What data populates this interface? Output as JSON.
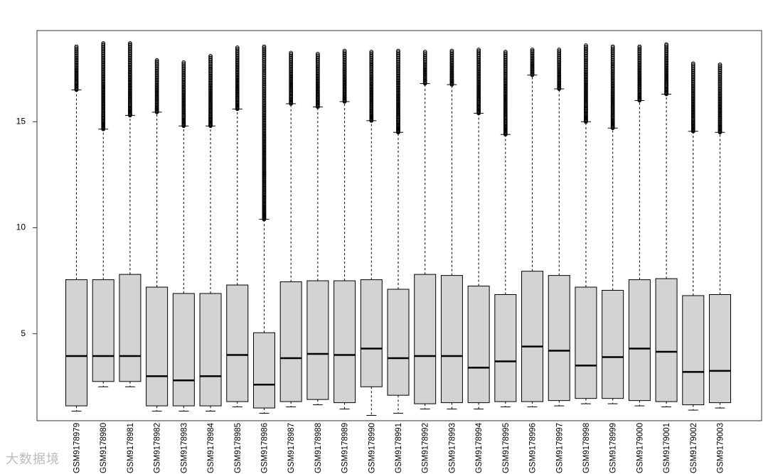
{
  "chart_data": {
    "type": "boxplot",
    "title": "",
    "xlabel": "",
    "ylabel": "",
    "ylim": [
      0.9,
      19.3
    ],
    "y_ticks": [
      5,
      10,
      15
    ],
    "box_fill": "#d3d3d3",
    "stroke_color": "#000000",
    "grid": false,
    "categories": [
      "GSM9178979",
      "GSM9178980",
      "GSM9178981",
      "GSM9178982",
      "GSM9178983",
      "GSM9178984",
      "GSM9178985",
      "GSM9178986",
      "GSM9178987",
      "GSM9178988",
      "GSM9178989",
      "GSM9178990",
      "GSM9178991",
      "GSM9178992",
      "GSM9178993",
      "GSM9178994",
      "GSM9178995",
      "GSM9178996",
      "GSM9178997",
      "GSM9178998",
      "GSM9178999",
      "GSM9179000",
      "GSM9179001",
      "GSM9179002",
      "GSM9179003"
    ],
    "boxes": [
      {
        "whisker_low": 1.35,
        "q1": 1.6,
        "median": 3.95,
        "q3": 7.55,
        "whisker_high": 16.5,
        "outlier_max": 18.55
      },
      {
        "whisker_low": 2.5,
        "q1": 2.75,
        "median": 3.95,
        "q3": 7.55,
        "whisker_high": 14.65,
        "outlier_max": 18.7
      },
      {
        "whisker_low": 2.5,
        "q1": 2.75,
        "median": 3.95,
        "q3": 7.8,
        "whisker_high": 15.3,
        "outlier_max": 18.7
      },
      {
        "whisker_low": 1.35,
        "q1": 1.6,
        "median": 3.0,
        "q3": 7.2,
        "whisker_high": 15.45,
        "outlier_max": 17.9
      },
      {
        "whisker_low": 1.35,
        "q1": 1.6,
        "median": 2.8,
        "q3": 6.9,
        "whisker_high": 14.8,
        "outlier_max": 17.8
      },
      {
        "whisker_low": 1.35,
        "q1": 1.6,
        "median": 3.0,
        "q3": 6.9,
        "whisker_high": 14.8,
        "outlier_max": 18.1
      },
      {
        "whisker_low": 1.55,
        "q1": 1.8,
        "median": 4.0,
        "q3": 7.3,
        "whisker_high": 15.6,
        "outlier_max": 18.5
      },
      {
        "whisker_low": 1.25,
        "q1": 1.5,
        "median": 2.6,
        "q3": 5.05,
        "whisker_high": 10.4,
        "outlier_max": 18.55
      },
      {
        "whisker_low": 1.55,
        "q1": 1.8,
        "median": 3.85,
        "q3": 7.45,
        "whisker_high": 15.85,
        "outlier_max": 18.25
      },
      {
        "whisker_low": 1.65,
        "q1": 1.9,
        "median": 4.05,
        "q3": 7.5,
        "whisker_high": 15.7,
        "outlier_max": 18.2
      },
      {
        "whisker_low": 1.45,
        "q1": 1.75,
        "median": 4.0,
        "q3": 7.5,
        "whisker_high": 15.95,
        "outlier_max": 18.35
      },
      {
        "whisker_low": 1.15,
        "q1": 2.5,
        "median": 4.3,
        "q3": 7.55,
        "whisker_high": 15.05,
        "outlier_max": 18.3
      },
      {
        "whisker_low": 1.25,
        "q1": 2.1,
        "median": 3.85,
        "q3": 7.1,
        "whisker_high": 14.5,
        "outlier_max": 18.35
      },
      {
        "whisker_low": 1.45,
        "q1": 1.7,
        "median": 3.95,
        "q3": 7.8,
        "whisker_high": 16.8,
        "outlier_max": 18.3
      },
      {
        "whisker_low": 1.45,
        "q1": 1.75,
        "median": 3.95,
        "q3": 7.75,
        "whisker_high": 16.75,
        "outlier_max": 18.35
      },
      {
        "whisker_low": 1.45,
        "q1": 1.75,
        "median": 3.4,
        "q3": 7.25,
        "whisker_high": 15.4,
        "outlier_max": 18.4
      },
      {
        "whisker_low": 1.55,
        "q1": 1.8,
        "median": 3.7,
        "q3": 6.85,
        "whisker_high": 14.4,
        "outlier_max": 18.3
      },
      {
        "whisker_low": 1.55,
        "q1": 1.8,
        "median": 4.4,
        "q3": 7.95,
        "whisker_high": 17.2,
        "outlier_max": 18.4
      },
      {
        "whisker_low": 1.6,
        "q1": 1.85,
        "median": 4.2,
        "q3": 7.75,
        "whisker_high": 16.55,
        "outlier_max": 18.4
      },
      {
        "whisker_low": 1.7,
        "q1": 1.95,
        "median": 3.5,
        "q3": 7.2,
        "whisker_high": 15.0,
        "outlier_max": 18.6
      },
      {
        "whisker_low": 1.7,
        "q1": 1.95,
        "median": 3.9,
        "q3": 7.05,
        "whisker_high": 14.7,
        "outlier_max": 18.55
      },
      {
        "whisker_low": 1.6,
        "q1": 1.85,
        "median": 4.3,
        "q3": 7.55,
        "whisker_high": 16.0,
        "outlier_max": 18.55
      },
      {
        "whisker_low": 1.55,
        "q1": 1.8,
        "median": 4.15,
        "q3": 7.6,
        "whisker_high": 16.3,
        "outlier_max": 18.65
      },
      {
        "whisker_low": 1.4,
        "q1": 1.65,
        "median": 3.2,
        "q3": 6.8,
        "whisker_high": 14.55,
        "outlier_max": 17.75
      },
      {
        "whisker_low": 1.5,
        "q1": 1.75,
        "median": 3.25,
        "q3": 6.85,
        "whisker_high": 14.5,
        "outlier_max": 17.7
      }
    ]
  },
  "watermark": {
    "text": "大数据境"
  }
}
